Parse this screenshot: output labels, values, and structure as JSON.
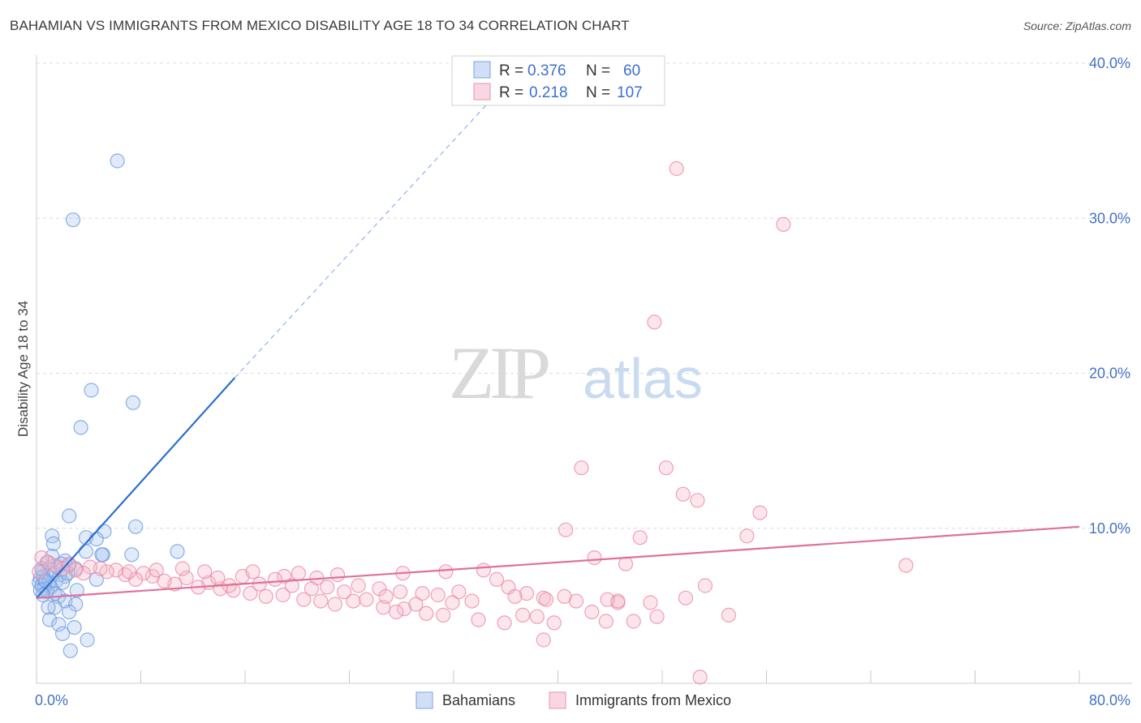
{
  "title": "BAHAMIAN VS IMMIGRANTS FROM MEXICO DISABILITY AGE 18 TO 34 CORRELATION CHART",
  "source": "Source: ZipAtlas.com",
  "watermark": {
    "zip": "ZIP",
    "atlas": "atlas"
  },
  "legend": {
    "r_label": "R =",
    "n_label": "N =",
    "rows": [
      {
        "r": "0.376",
        "n": "60",
        "color": "#a9c4ef"
      },
      {
        "r": "0.218",
        "n": "107",
        "color": "#f4b6c9"
      }
    ]
  },
  "bottom_legend": [
    "Bahamians",
    "Immigrants from Mexico"
  ],
  "colors": {
    "blue": "#6d9de0",
    "blue_line": "#2a6fd1",
    "pink": "#ec8aa8",
    "pink_line": "#e0709a",
    "axis_text": "#4472c4"
  },
  "chart_data": {
    "type": "scatter",
    "title": "BAHAMIAN VS IMMIGRANTS FROM MEXICO DISABILITY AGE 18 TO 34 CORRELATION CHART",
    "xlabel": "",
    "ylabel": "Disability Age 18 to 34",
    "xlim": [
      0,
      80
    ],
    "ylim": [
      0,
      40
    ],
    "x_tick_labels": [
      "0.0%",
      "80.0%"
    ],
    "y_ticks": [
      10,
      20,
      30,
      40
    ],
    "y_tick_labels": [
      "10.0%",
      "20.0%",
      "30.0%",
      "40.0%"
    ],
    "series": [
      {
        "name": "Bahamians",
        "R": 0.376,
        "N": 60,
        "trend": {
          "x": [
            0,
            15.2
          ],
          "y": [
            5.5,
            19.7
          ],
          "dashed_to": [
            34.5,
            37.3
          ]
        },
        "points": [
          [
            6.2,
            33.7
          ],
          [
            2.8,
            29.9
          ],
          [
            4.2,
            18.9
          ],
          [
            7.4,
            18.1
          ],
          [
            3.4,
            16.5
          ],
          [
            2.5,
            10.8
          ],
          [
            7.6,
            10.1
          ],
          [
            5.2,
            9.8
          ],
          [
            1.2,
            9.5
          ],
          [
            3.8,
            9.4
          ],
          [
            4.6,
            9.3
          ],
          [
            1.3,
            9.0
          ],
          [
            5.1,
            8.3
          ],
          [
            5.0,
            8.3
          ],
          [
            7.3,
            8.3
          ],
          [
            10.8,
            8.5
          ],
          [
            3.8,
            8.5
          ],
          [
            1.2,
            8.2
          ],
          [
            2.2,
            7.9
          ],
          [
            0.8,
            7.8
          ],
          [
            1.6,
            7.5
          ],
          [
            2.5,
            7.6
          ],
          [
            3.0,
            7.4
          ],
          [
            0.5,
            7.2
          ],
          [
            1.0,
            7.1
          ],
          [
            1.8,
            7.0
          ],
          [
            2.2,
            6.9
          ],
          [
            0.3,
            6.8
          ],
          [
            0.6,
            6.7
          ],
          [
            1.5,
            6.6
          ],
          [
            2.0,
            6.5
          ],
          [
            4.6,
            6.7
          ],
          [
            0.2,
            6.5
          ],
          [
            0.9,
            6.4
          ],
          [
            0.4,
            6.3
          ],
          [
            1.1,
            6.2
          ],
          [
            0.6,
            6.1
          ],
          [
            0.3,
            6.0
          ],
          [
            0.8,
            5.9
          ],
          [
            1.4,
            5.8
          ],
          [
            3.1,
            6.0
          ],
          [
            0.5,
            5.7
          ],
          [
            1.7,
            5.6
          ],
          [
            2.2,
            5.3
          ],
          [
            3.0,
            5.1
          ],
          [
            1.4,
            4.9
          ],
          [
            0.9,
            4.9
          ],
          [
            2.5,
            4.6
          ],
          [
            1.0,
            4.1
          ],
          [
            1.7,
            3.8
          ],
          [
            2.9,
            3.6
          ],
          [
            2.0,
            3.2
          ],
          [
            3.9,
            2.8
          ],
          [
            2.6,
            2.1
          ],
          [
            0.5,
            6.9
          ],
          [
            1.2,
            7.3
          ],
          [
            0.7,
            6.6
          ],
          [
            2.4,
            7.1
          ],
          [
            1.9,
            7.7
          ],
          [
            0.4,
            7.4
          ]
        ]
      },
      {
        "name": "Immigrants from Mexico",
        "R": 0.218,
        "N": 107,
        "trend": {
          "x": [
            0,
            80
          ],
          "y": [
            5.5,
            10.1
          ]
        },
        "points": [
          [
            49.1,
            33.2
          ],
          [
            57.3,
            29.6
          ],
          [
            47.4,
            23.3
          ],
          [
            41.8,
            13.9
          ],
          [
            48.3,
            13.9
          ],
          [
            49.6,
            12.2
          ],
          [
            50.7,
            11.8
          ],
          [
            55.5,
            11.0
          ],
          [
            40.6,
            9.9
          ],
          [
            54.5,
            9.5
          ],
          [
            46.3,
            9.4
          ],
          [
            42.8,
            8.1
          ],
          [
            45.2,
            7.7
          ],
          [
            66.7,
            7.6
          ],
          [
            34.3,
            7.3
          ],
          [
            28.1,
            7.1
          ],
          [
            31.4,
            7.2
          ],
          [
            20.1,
            7.1
          ],
          [
            35.3,
            6.7
          ],
          [
            23.1,
            7.0
          ],
          [
            19.0,
            6.9
          ],
          [
            21.5,
            6.8
          ],
          [
            24.7,
            6.3
          ],
          [
            22.3,
            6.2
          ],
          [
            26.3,
            6.1
          ],
          [
            27.9,
            5.9
          ],
          [
            29.6,
            5.8
          ],
          [
            30.8,
            5.7
          ],
          [
            32.4,
            5.9
          ],
          [
            36.2,
            6.2
          ],
          [
            37.6,
            5.8
          ],
          [
            38.9,
            5.5
          ],
          [
            39.1,
            5.4
          ],
          [
            33.4,
            5.3
          ],
          [
            31.9,
            5.2
          ],
          [
            29.1,
            5.1
          ],
          [
            28.2,
            4.8
          ],
          [
            26.6,
            4.9
          ],
          [
            25.3,
            5.4
          ],
          [
            24.3,
            5.3
          ],
          [
            22.9,
            5.1
          ],
          [
            21.8,
            5.3
          ],
          [
            20.5,
            5.4
          ],
          [
            18.9,
            5.7
          ],
          [
            17.6,
            5.6
          ],
          [
            16.4,
            5.8
          ],
          [
            15.1,
            6.0
          ],
          [
            14.1,
            6.1
          ],
          [
            13.2,
            6.5
          ],
          [
            12.4,
            6.2
          ],
          [
            11.5,
            6.8
          ],
          [
            10.6,
            6.4
          ],
          [
            9.8,
            6.6
          ],
          [
            8.9,
            6.9
          ],
          [
            8.2,
            7.1
          ],
          [
            7.6,
            6.7
          ],
          [
            6.8,
            7.0
          ],
          [
            6.1,
            7.3
          ],
          [
            5.4,
            7.2
          ],
          [
            4.9,
            7.4
          ],
          [
            4.1,
            7.5
          ],
          [
            3.6,
            7.1
          ],
          [
            3.0,
            7.3
          ],
          [
            2.5,
            7.7
          ],
          [
            2.0,
            7.4
          ],
          [
            1.4,
            7.6
          ],
          [
            0.9,
            7.8
          ],
          [
            0.4,
            8.1
          ],
          [
            0.2,
            7.2
          ],
          [
            12.9,
            7.2
          ],
          [
            15.8,
            6.9
          ],
          [
            17.1,
            6.4
          ],
          [
            19.6,
            6.3
          ],
          [
            21.1,
            6.1
          ],
          [
            23.6,
            5.9
          ],
          [
            26.8,
            5.6
          ],
          [
            27.6,
            4.6
          ],
          [
            29.9,
            4.5
          ],
          [
            31.2,
            4.4
          ],
          [
            33.9,
            4.1
          ],
          [
            35.9,
            3.9
          ],
          [
            37.3,
            4.4
          ],
          [
            38.4,
            4.3
          ],
          [
            39.7,
            3.9
          ],
          [
            40.5,
            5.6
          ],
          [
            41.4,
            5.3
          ],
          [
            42.6,
            4.6
          ],
          [
            43.7,
            4.0
          ],
          [
            44.6,
            5.2
          ],
          [
            45.8,
            4.0
          ],
          [
            47.1,
            5.2
          ],
          [
            47.6,
            4.3
          ],
          [
            49.8,
            5.5
          ],
          [
            51.3,
            6.3
          ],
          [
            53.1,
            4.4
          ],
          [
            38.9,
            2.8
          ],
          [
            50.9,
            0.4
          ],
          [
            11.2,
            7.4
          ],
          [
            9.2,
            7.3
          ],
          [
            7.1,
            7.2
          ],
          [
            13.9,
            6.8
          ],
          [
            18.3,
            6.7
          ],
          [
            16.6,
            7.2
          ],
          [
            14.8,
            6.3
          ],
          [
            44.6,
            5.3
          ],
          [
            43.8,
            5.4
          ],
          [
            36.7,
            5.6
          ]
        ]
      }
    ]
  }
}
